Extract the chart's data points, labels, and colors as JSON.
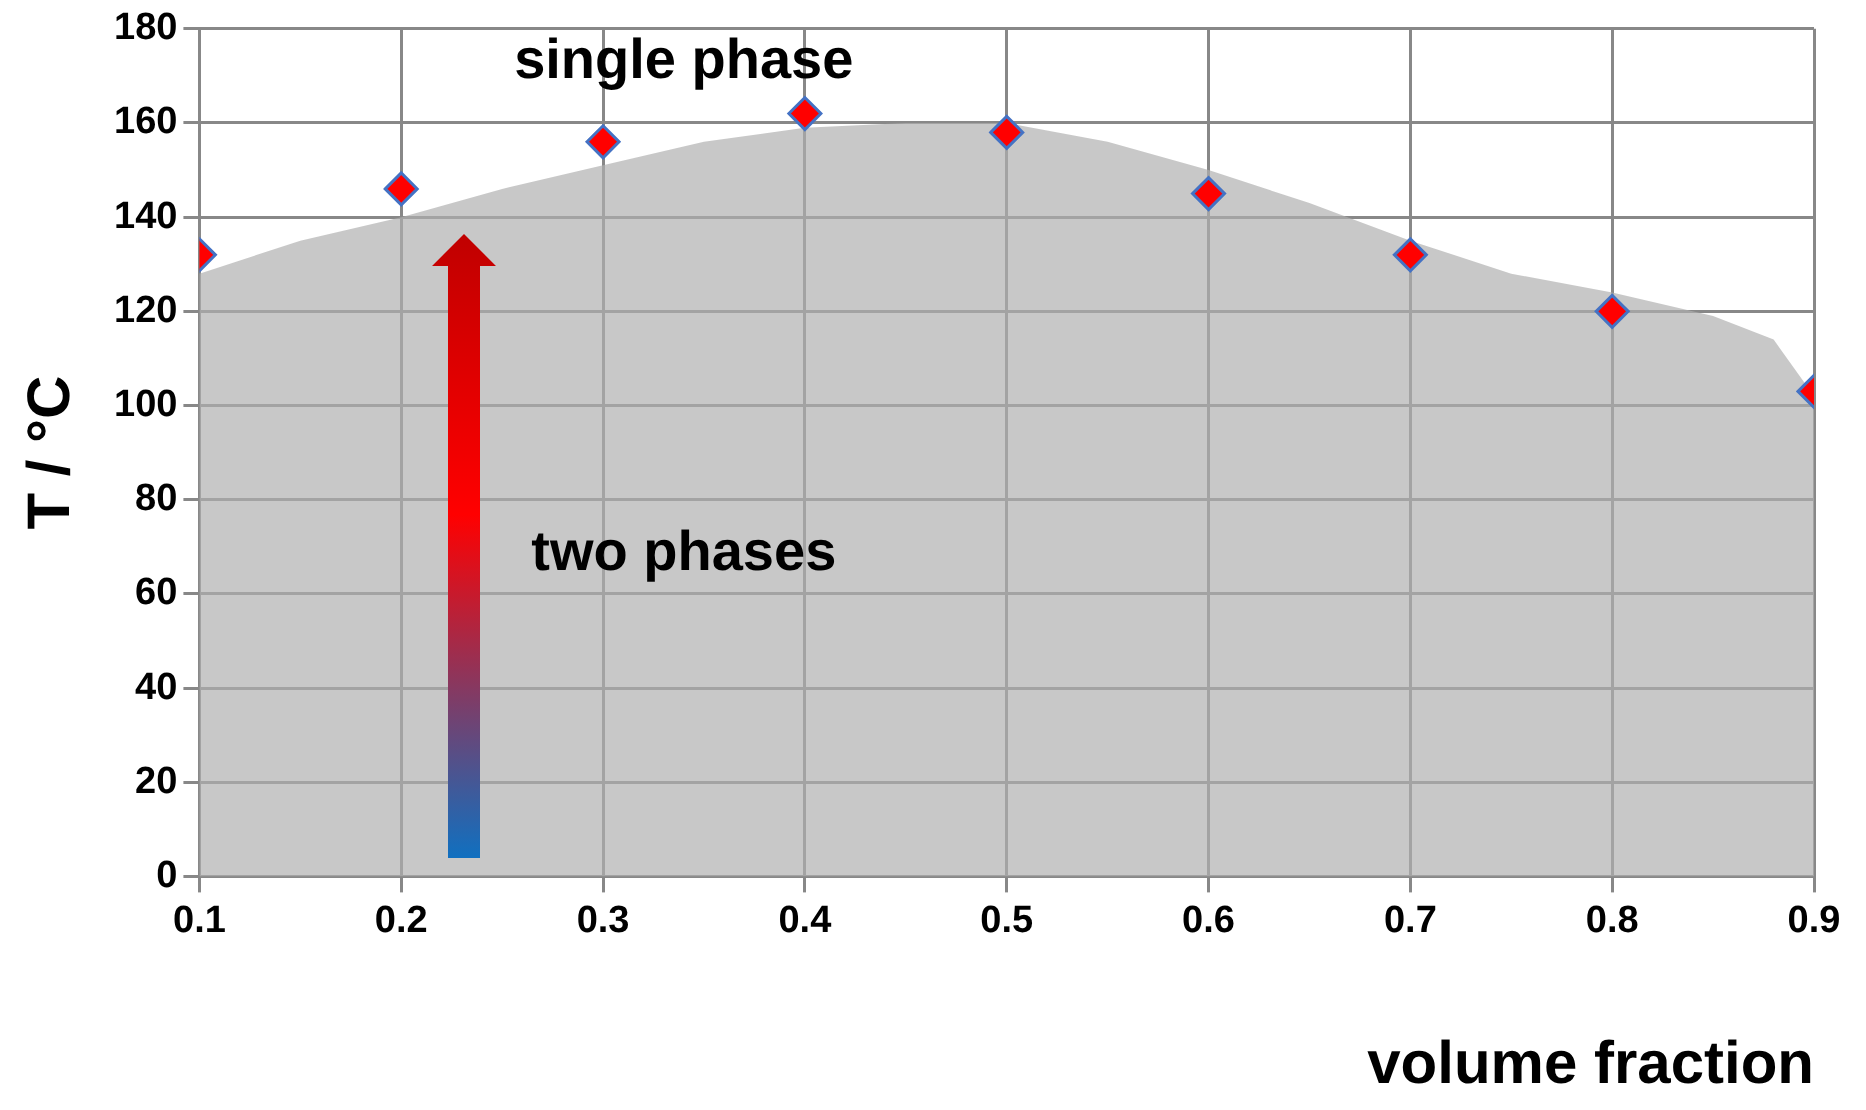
{
  "chart_data": {
    "type": "scatter",
    "xlabel": "volume fraction",
    "ylabel": "T / °C",
    "xlim": [
      0.1,
      0.9
    ],
    "xticks": [
      0.1,
      0.2,
      0.3,
      0.4,
      0.5,
      0.6,
      0.7,
      0.8,
      0.9
    ],
    "ylim": [
      0,
      180
    ],
    "yticks": [
      0,
      20,
      40,
      60,
      80,
      100,
      120,
      140,
      160,
      180
    ],
    "grid": true,
    "series": [
      {
        "type": "area",
        "color": "#b0b0b0",
        "x": [
          0.1,
          0.15,
          0.2,
          0.25,
          0.3,
          0.35,
          0.4,
          0.45,
          0.5,
          0.55,
          0.6,
          0.65,
          0.7,
          0.75,
          0.8,
          0.85,
          0.88,
          0.9
        ],
        "values": [
          128,
          135,
          140,
          146,
          151,
          156,
          159,
          160,
          160,
          156,
          150,
          143,
          135,
          128,
          124,
          119,
          114,
          102
        ]
      },
      {
        "marker": "diamond",
        "color": "#ff0000",
        "x": [
          0.1,
          0.2,
          0.3,
          0.4,
          0.5,
          0.6,
          0.7,
          0.8,
          0.9
        ],
        "values": [
          132,
          146,
          156,
          162,
          158,
          145,
          132,
          120,
          103
        ]
      }
    ],
    "annotations": [
      "single phase",
      "two phases"
    ]
  }
}
